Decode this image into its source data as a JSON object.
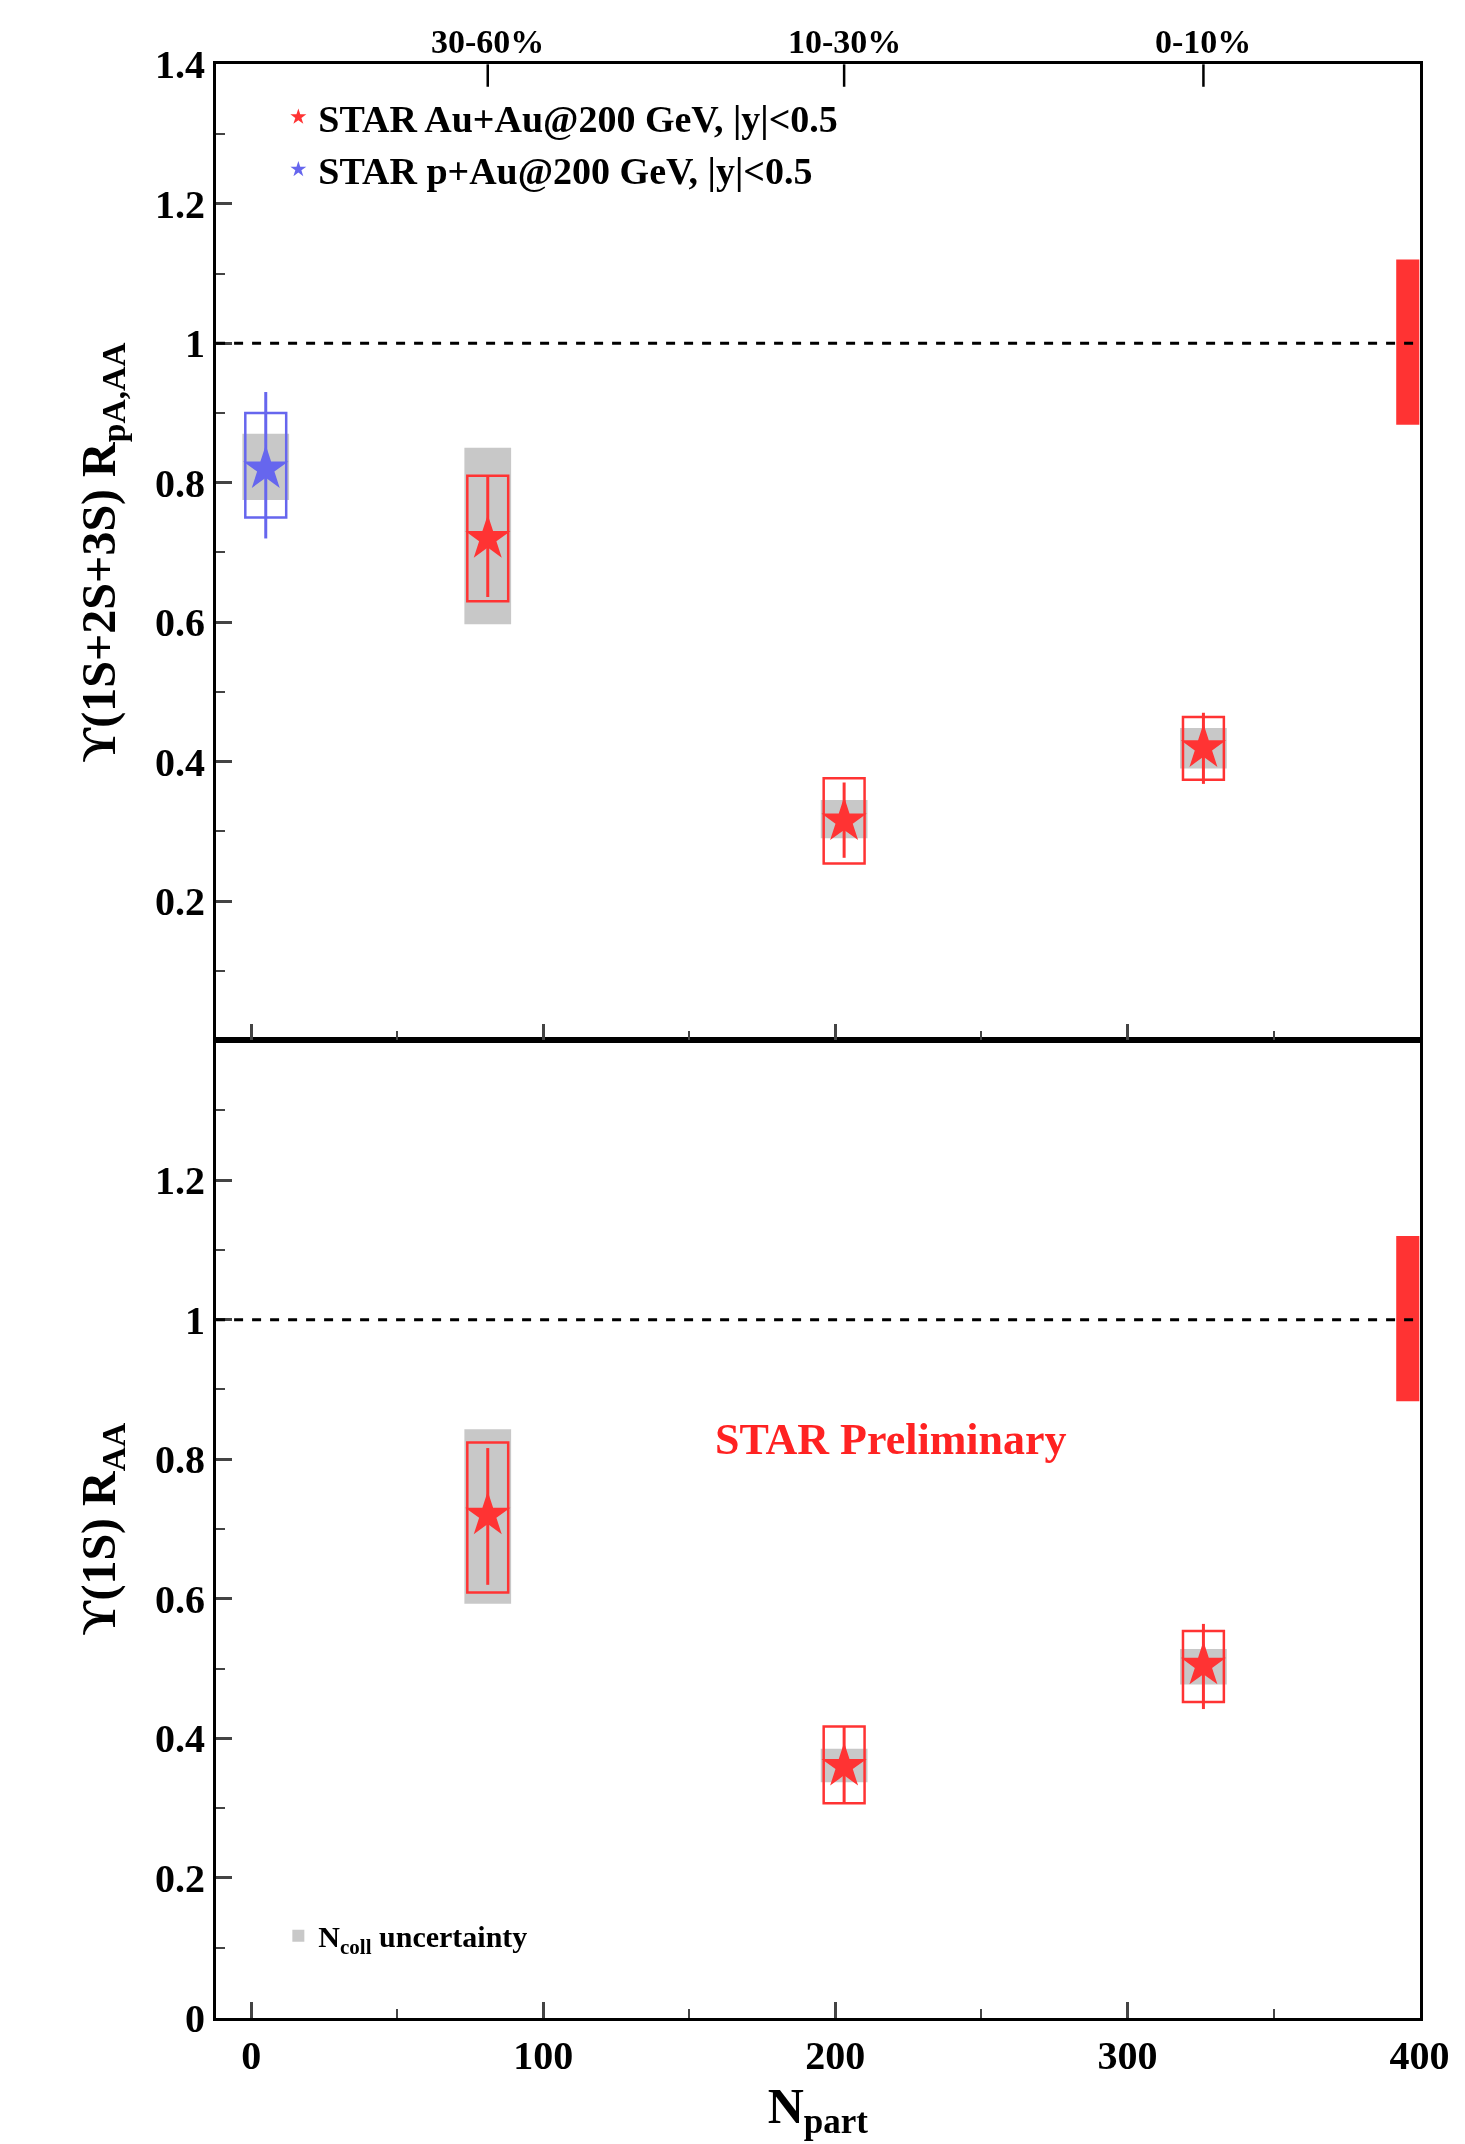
{
  "chart_data": [
    {
      "type": "scatter",
      "ylabel": "ϒ(1S+2S+3S) R$_{pA,AA}$",
      "xlim": [
        -12,
        400
      ],
      "ylim": [
        0,
        1.4
      ],
      "xticks": [
        {
          "value": 0,
          "label": null
        },
        {
          "value": 100,
          "label": null
        },
        {
          "value": 200,
          "label": null
        },
        {
          "value": 300,
          "label": null
        },
        {
          "value": 400,
          "label": null
        }
      ],
      "yticks": [
        0.2,
        0.4,
        0.6,
        0.8,
        1,
        1.2,
        1.4
      ],
      "tick_labels": "y",
      "legend": "top left",
      "marker": "star",
      "annotations": [
        "30-60%",
        "10-30%",
        "0-10%"
      ],
      "ref_lines": [
        {
          "axis": "y",
          "value": 1,
          "label": null,
          "color": "#000000",
          "line_style": "dashed"
        }
      ],
      "series": [
        {
          "type": "bar",
          "color": "#c8c8c8",
          "x": [
            5,
            81,
            203,
            326
          ],
          "base": [
            0.775,
            0.597,
            0.29,
            0.39
          ],
          "values": [
            0.095,
            0.253,
            0.055,
            0.058
          ]
        },
        {
          "type": "bar",
          "color": "#6666ee",
          "x": [
            5
          ],
          "base": [
            0.75
          ],
          "values": [
            0.15
          ]
        },
        {
          "type": "bar",
          "color": "#ff3333",
          "x": [
            81,
            203,
            326
          ],
          "base": [
            0.63,
            0.254,
            0.374
          ],
          "values": [
            0.18,
            0.122,
            0.09
          ]
        },
        {
          "type": "bar",
          "color": "#ff3333",
          "x": [
            396
          ],
          "base": [
            0.883
          ],
          "values": [
            0.237
          ]
        },
        {
          "name": "STAR Au+Au@200 GeV, |y|<0.5",
          "color": "#ff3333",
          "x": [
            81,
            203,
            326
          ],
          "values": [
            0.72,
            0.315,
            0.42
          ],
          "errors": [
            [
              0.636,
              0.81
            ],
            [
              0.262,
              0.37
            ],
            [
              0.368,
              0.47
            ]
          ]
        },
        {
          "name": "STAR p+Au@200 GeV, |y|<0.5",
          "color": "#6666ee",
          "x": [
            5
          ],
          "values": [
            0.82
          ],
          "errors": [
            [
              0.72,
              0.93
            ]
          ]
        }
      ]
    },
    {
      "type": "scatter",
      "ylabel": "ϒ(1S) R$_{AA}$",
      "xlabel": "N$_{part}$",
      "xlim": [
        -12,
        400
      ],
      "ylim": [
        0,
        1.4
      ],
      "xticks": [
        0,
        100,
        200,
        300,
        400
      ],
      "yticks": [
        0,
        0.2,
        0.4,
        0.6,
        0.8,
        1,
        1.2
      ],
      "legend": "bottom left",
      "marker": "star",
      "annotations": [
        "STAR Preliminary"
      ],
      "ref_lines": [
        {
          "axis": "y",
          "value": 1,
          "label": null,
          "color": "#000000",
          "line_style": "dashed"
        }
      ],
      "series": [
        {
          "type": "bar",
          "name": "N$_{coll}$ uncertainty",
          "color": "#c8c8c8",
          "x": [
            81,
            203,
            326
          ],
          "base": [
            0.593,
            0.337,
            0.477
          ],
          "values": [
            0.25,
            0.048,
            0.051
          ]
        },
        {
          "type": "bar",
          "color": "#ff3333",
          "x": [
            81,
            203,
            326
          ],
          "base": [
            0.609,
            0.307,
            0.452
          ],
          "values": [
            0.215,
            0.11,
            0.102
          ]
        },
        {
          "type": "bar",
          "color": "#ff3333",
          "x": [
            396
          ],
          "base": [
            0.883
          ],
          "values": [
            0.237
          ]
        },
        {
          "color": "#ff3333",
          "x": [
            81,
            203,
            326
          ],
          "values": [
            0.72,
            0.36,
            0.505
          ],
          "errors": [
            [
              0.62,
              0.816
            ],
            [
              0.307,
              0.417
            ],
            [
              0.442,
              0.564
            ]
          ]
        }
      ]
    }
  ]
}
